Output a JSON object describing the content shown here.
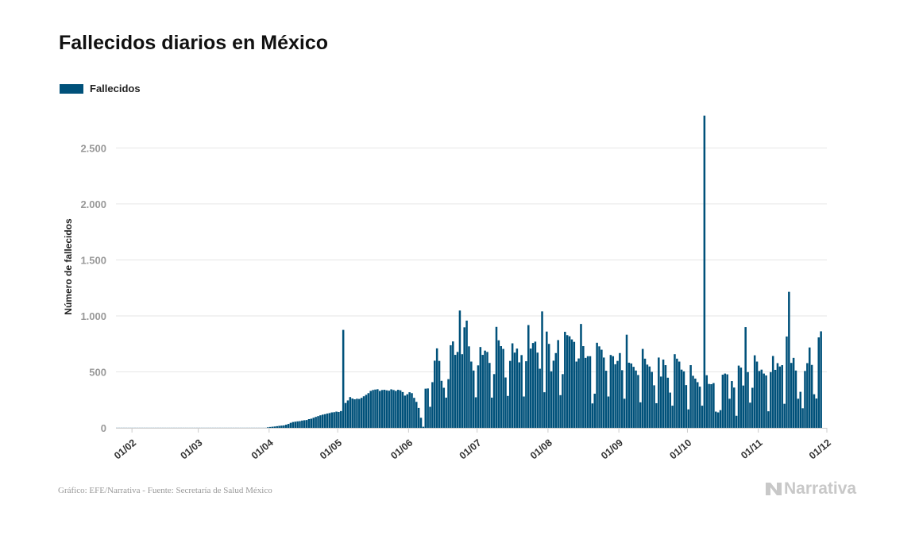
{
  "title": "Fallecidos diarios en México",
  "footer": "Gráfico: EFE/Narrativa - Fuente: Secretaría de Salud México",
  "brand": {
    "name": "Narrativa",
    "icon": "narrativa-logo-icon",
    "color": "#c8c8c8"
  },
  "colors": {
    "bar": "#00517a",
    "grid": "#e6e6e6",
    "tick": "#999999"
  },
  "chart_data": {
    "type": "bar",
    "title": "Fallecidos diarios en México",
    "xlabel": "",
    "ylabel": "Número de fallecidos",
    "ylim": [
      0,
      2900
    ],
    "yticks": [
      0,
      500,
      1000,
      1500,
      2000,
      2500
    ],
    "ytick_labels": [
      "0",
      "500",
      "1.000",
      "1.500",
      "2.000",
      "2.500"
    ],
    "x_start": "2020-01-25",
    "x_end": "2020-12-01",
    "xticks": [
      "2020-02-01",
      "2020-03-01",
      "2020-04-01",
      "2020-05-01",
      "2020-06-01",
      "2020-07-01",
      "2020-08-01",
      "2020-09-01",
      "2020-10-01",
      "2020-11-01",
      "2020-12-01"
    ],
    "xtick_labels": [
      "01/02",
      "01/03",
      "01/04",
      "01/05",
      "01/06",
      "01/07",
      "01/08",
      "01/09",
      "01/10",
      "01/11",
      "01/12"
    ],
    "grid": true,
    "legend_position": "top-left",
    "series": [
      {
        "name": "Fallecidos",
        "start_date": "2020-01-25",
        "values": [
          1,
          1,
          1,
          1,
          1,
          1,
          1,
          1,
          1,
          1,
          1,
          1,
          1,
          1,
          1,
          1,
          1,
          1,
          1,
          1,
          1,
          1,
          1,
          1,
          1,
          1,
          1,
          1,
          1,
          1,
          1,
          1,
          1,
          1,
          1,
          1,
          1,
          1,
          1,
          1,
          1,
          1,
          1,
          1,
          1,
          1,
          1,
          1,
          1,
          1,
          1,
          1,
          1,
          1,
          1,
          1,
          1,
          1,
          1,
          1,
          1,
          1,
          1,
          1,
          1,
          1,
          5,
          8,
          10,
          12,
          15,
          18,
          20,
          22,
          28,
          35,
          45,
          52,
          55,
          58,
          60,
          65,
          68,
          70,
          78,
          82,
          90,
          98,
          105,
          112,
          118,
          122,
          128,
          132,
          138,
          140,
          145,
          142,
          150,
          875,
          222,
          245,
          275,
          262,
          255,
          260,
          258,
          268,
          282,
          295,
          310,
          330,
          338,
          342,
          345,
          330,
          338,
          340,
          335,
          332,
          344,
          338,
          330,
          340,
          335,
          320,
          288,
          300,
          318,
          310,
          268,
          232,
          178,
          90,
          10,
          350,
          352,
          188,
          408,
          600,
          710,
          598,
          420,
          358,
          270,
          435,
          738,
          772,
          652,
          678,
          1048,
          658,
          898,
          958,
          728,
          592,
          512,
          273,
          558,
          722,
          652,
          690,
          678,
          580,
          270,
          480,
          902,
          782,
          730,
          705,
          450,
          285,
          598,
          755,
          672,
          708,
          585,
          650,
          280,
          595,
          918,
          708,
          758,
          770,
          672,
          528,
          1040,
          318,
          860,
          750,
          505,
          600,
          668,
          784,
          292,
          480,
          858,
          828,
          818,
          790,
          768,
          592,
          620,
          928,
          730,
          625,
          640,
          640,
          218,
          305,
          760,
          728,
          698,
          628,
          510,
          280,
          651,
          640,
          568,
          598,
          668,
          515,
          260,
          832,
          582,
          575,
          545,
          512,
          472,
          228,
          705,
          618,
          565,
          548,
          500,
          380,
          220,
          628,
          458,
          610,
          560,
          448,
          315,
          198,
          658,
          618,
          592,
          520,
          505,
          382,
          165,
          560,
          465,
          440,
          408,
          368,
          198,
          2789,
          470,
          392,
          390,
          400,
          145,
          138,
          158,
          475,
          485,
          478,
          260,
          418,
          360,
          108,
          556,
          538,
          378,
          900,
          498,
          225,
          358,
          648,
          592,
          508,
          520,
          485,
          468,
          148,
          498,
          642,
          518,
          578,
          548,
          560,
          215,
          816,
          1215,
          580,
          625,
          512,
          260,
          322,
          175,
          508,
          578,
          718,
          562,
          300,
          262,
          808,
          862
        ]
      }
    ]
  }
}
